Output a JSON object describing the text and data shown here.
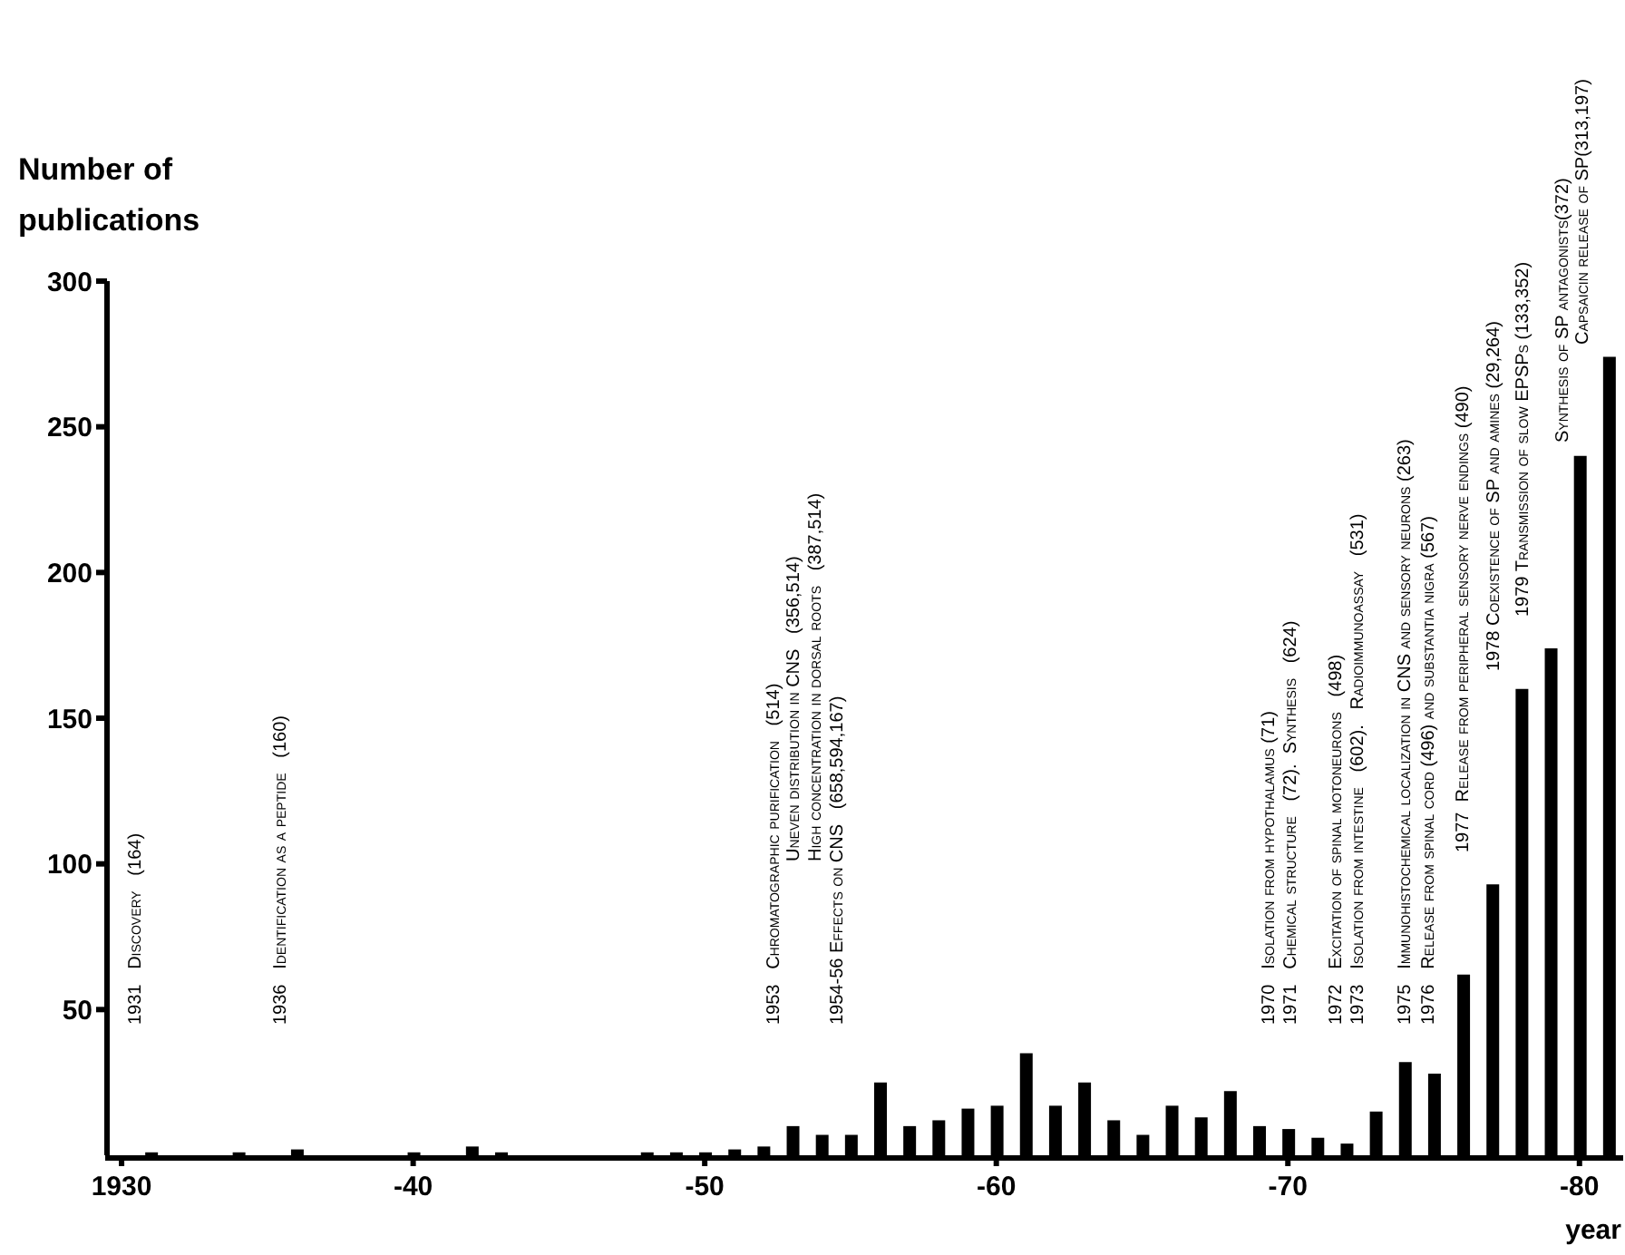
{
  "chart_data": {
    "type": "bar",
    "ylabel": "Number of publications",
    "xlabel": "year",
    "categories": [
      "1930",
      null,
      null,
      null,
      null,
      null,
      null,
      null,
      null,
      null,
      "-40",
      null,
      null,
      null,
      null,
      null,
      null,
      null,
      null,
      null,
      "-50",
      null,
      null,
      null,
      null,
      null,
      null,
      null,
      null,
      null,
      "-60",
      null,
      null,
      null,
      null,
      null,
      null,
      null,
      null,
      null,
      "-70",
      null,
      null,
      null,
      null,
      null,
      null,
      null,
      null,
      null,
      "-80",
      null
    ],
    "values": [
      null,
      1,
      null,
      null,
      1,
      null,
      2,
      null,
      null,
      null,
      1,
      null,
      3,
      1,
      null,
      null,
      null,
      null,
      1,
      1,
      1,
      2,
      3,
      10,
      7,
      7,
      25,
      10,
      12,
      16,
      17,
      35,
      17,
      25,
      12,
      7,
      17,
      13,
      22,
      10,
      9,
      6,
      4,
      15,
      32,
      28,
      62,
      93,
      160,
      174,
      240,
      274
    ],
    "color": "#000000",
    "ylim": [
      0,
      300
    ],
    "yticks": [
      {
        "value": 50,
        "label": "50"
      },
      {
        "value": 100,
        "label": "100"
      },
      {
        "value": 150,
        "label": "150"
      },
      {
        "value": 200,
        "label": "200"
      },
      {
        "value": 250,
        "label": "250"
      },
      {
        "value": 300,
        "label": "300"
      }
    ],
    "annotations": [
      "1931   Discovery   (164)",
      "1936   Identification as a peptide   (160)",
      "1953   Chromatographic purification   (514)",
      "Uneven distribution in CNS   (356,514)",
      "High concentration in dorsal roots   (387,514)",
      "1954-56 Effects on CNS   (658,594,167)",
      "1970   Isolation from hypothalamus (71)",
      "1971   Chemical structure   (72).  Synthesis   (624)",
      "1972   Excitation of spinal motoneurons   (498)",
      "1973   Isolation from intestine   (602).   Radioimmunoassay   (531)",
      "1975   Immunohistochemical localization in CNS and sensory neurons (263)",
      "1976   Release from spinal cord (496) and substantia nigra (567)",
      "1977  Release from peripheral sensory nerve endings (490)",
      "1978 Coexistence of SP and amines (29,264)",
      "1979 Transmission of slow EPSPs (133,352)",
      "Synthesis of SP antagonists(372)",
      "Capsaicin release of SP(313,197)"
    ]
  }
}
